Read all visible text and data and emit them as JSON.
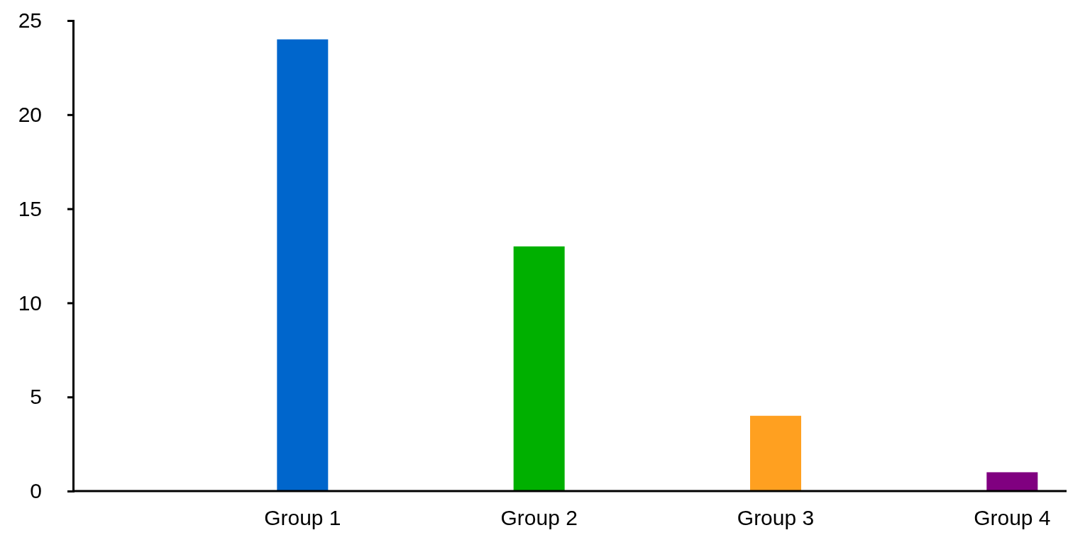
{
  "chart_data": {
    "type": "bar",
    "categories": [
      "Group 1",
      "Group 2",
      "Group 3",
      "Group 4"
    ],
    "values": [
      24,
      13,
      4,
      1
    ],
    "colors": [
      "#0066cc",
      "#00b000",
      "#ffa020",
      "#800080"
    ],
    "ylim": [
      0,
      25
    ],
    "yticks": [
      0,
      5,
      10,
      15,
      20,
      25
    ],
    "grid": false
  }
}
